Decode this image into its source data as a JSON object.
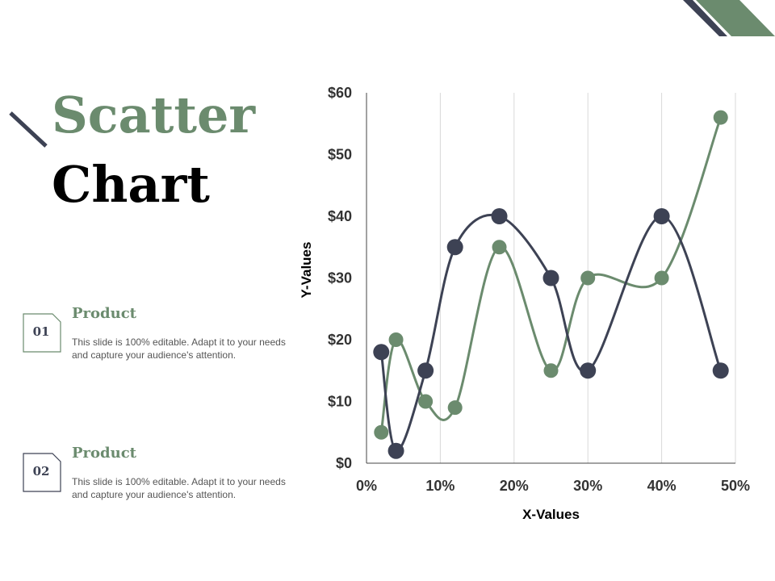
{
  "slide": {
    "title_line1": "Scatter",
    "title_line2": "Chart",
    "accent_color": "#6b8b6e",
    "dark_color": "#3d4254"
  },
  "items": [
    {
      "number": "01",
      "title": "Product",
      "description": "This slide is 100% editable. Adapt it to your needs and capture your audience's attention."
    },
    {
      "number": "02",
      "title": "Product",
      "description": "This slide is 100% editable. Adapt it to your needs and capture your audience's attention."
    }
  ],
  "chart_data": {
    "type": "scatter",
    "title": "",
    "xlabel": "X-Values",
    "ylabel": "Y-Values",
    "xlim": [
      0,
      0.5
    ],
    "ylim": [
      0,
      60
    ],
    "x_ticks": [
      "0%",
      "10%",
      "20%",
      "30%",
      "40%",
      "50%"
    ],
    "y_ticks": [
      "$0",
      "$10",
      "$20",
      "$30",
      "$40",
      "$50",
      "$60"
    ],
    "x_tick_values": [
      0,
      0.1,
      0.2,
      0.3,
      0.4,
      0.5
    ],
    "y_tick_values": [
      0,
      10,
      20,
      30,
      40,
      50,
      60
    ],
    "grid": "vertical",
    "smooth_lines": true,
    "series": [
      {
        "color": "#3d4254",
        "points": [
          {
            "x": 0.02,
            "y": 18
          },
          {
            "x": 0.04,
            "y": 2
          },
          {
            "x": 0.08,
            "y": 15
          },
          {
            "x": 0.12,
            "y": 35
          },
          {
            "x": 0.18,
            "y": 40
          },
          {
            "x": 0.25,
            "y": 30
          },
          {
            "x": 0.3,
            "y": 15
          },
          {
            "x": 0.4,
            "y": 40
          },
          {
            "x": 0.48,
            "y": 15
          }
        ]
      },
      {
        "color": "#6b8b6e",
        "points": [
          {
            "x": 0.02,
            "y": 5
          },
          {
            "x": 0.04,
            "y": 20
          },
          {
            "x": 0.08,
            "y": 10
          },
          {
            "x": 0.12,
            "y": 9
          },
          {
            "x": 0.18,
            "y": 35
          },
          {
            "x": 0.25,
            "y": 15
          },
          {
            "x": 0.3,
            "y": 30
          },
          {
            "x": 0.4,
            "y": 30
          },
          {
            "x": 0.48,
            "y": 56
          }
        ]
      }
    ]
  }
}
